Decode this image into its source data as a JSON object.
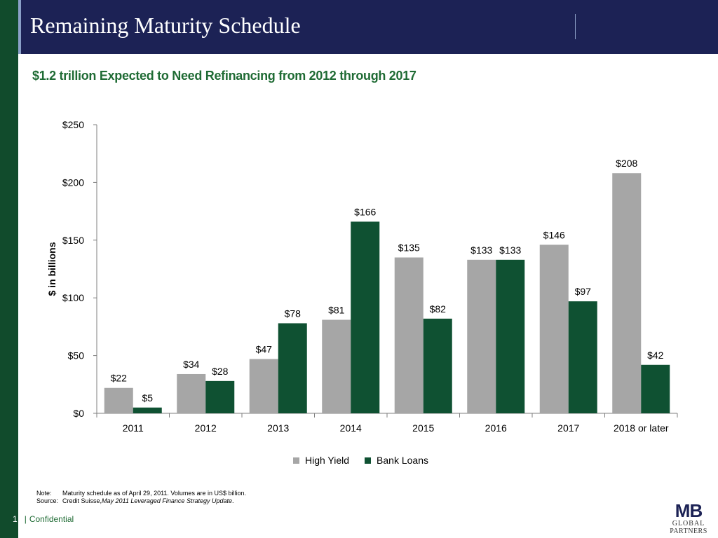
{
  "header": {
    "title": "Remaining Maturity Schedule"
  },
  "subtitle": "$1.2 trillion Expected to Need Refinancing from 2012 through 2017",
  "chart_data": {
    "type": "bar",
    "title": "",
    "xlabel": "",
    "ylabel": "$ in billions",
    "ylim": [
      0,
      250
    ],
    "yticks": [
      0,
      50,
      100,
      150,
      200,
      250
    ],
    "ytick_labels": [
      "$0",
      "$50",
      "$100",
      "$150",
      "$200",
      "$250"
    ],
    "categories": [
      "2011",
      "2012",
      "2013",
      "2014",
      "2015",
      "2016",
      "2017",
      "2018 or later"
    ],
    "series": [
      {
        "name": "High Yield",
        "color": "#a6a6a6",
        "values": [
          22,
          34,
          47,
          81,
          135,
          133,
          146,
          208
        ],
        "labels": [
          "$22",
          "$34",
          "$47",
          "$81",
          "$135",
          "$133",
          "$146",
          "$208"
        ]
      },
      {
        "name": "Bank Loans",
        "color": "#0f5132",
        "values": [
          5,
          28,
          78,
          166,
          82,
          133,
          97,
          42
        ],
        "labels": [
          "$5",
          "$28",
          "$78",
          "$166",
          "$82",
          "$133",
          "$97",
          "$42"
        ]
      }
    ],
    "grid": false,
    "legend_position": "bottom"
  },
  "notes": {
    "note_key": "Note:",
    "note_text": "Maturity schedule as of April 29, 2011.  Volumes are in US$ billion.",
    "source_key": "Source:",
    "source_text": "Credit Suisse, ",
    "source_italic": "May 2011 Leveraged Finance Strategy Update",
    "source_end": "."
  },
  "footer": {
    "page_number": "1",
    "separator": "|",
    "label": "Confidential"
  },
  "logo": {
    "mark": "MB",
    "line1": "GLOBAL",
    "line2": "PARTNERS"
  }
}
